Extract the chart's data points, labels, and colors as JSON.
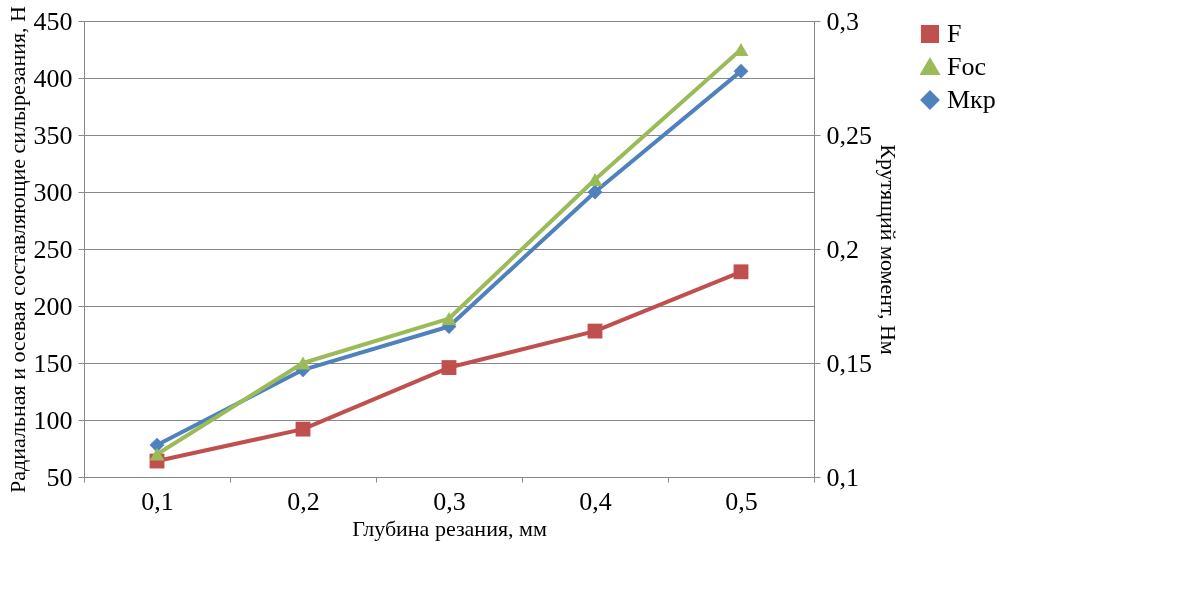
{
  "chart_data": {
    "type": "line",
    "xlabel": "Глубина резания, мм",
    "ylabel": "Радиальная и осевая составляющие силырезания, Н",
    "y2label": "Крутящий момент, Нм",
    "categories": [
      "0,1",
      "0,2",
      "0,3",
      "0,4",
      "0,5"
    ],
    "series": [
      {
        "name": "F",
        "color": "#c0504d",
        "marker": "square",
        "values": [
          64,
          92,
          146,
          178,
          230
        ]
      },
      {
        "name": "Foc",
        "color": "#9bbb59",
        "marker": "triangle",
        "values": [
          70,
          150,
          189,
          311,
          425
        ]
      },
      {
        "name": "Мкр",
        "color": "#4f81bd",
        "marker": "diamond",
        "axis": "y2",
        "values": [
          0.114,
          0.147,
          0.166,
          0.225,
          0.278
        ]
      }
    ],
    "ylim": [
      50,
      450
    ],
    "yticks": [
      50,
      100,
      150,
      200,
      250,
      300,
      350,
      400,
      450
    ],
    "y2lim": [
      0.1,
      0.3
    ],
    "y2ticks": [
      {
        "value": 0.1,
        "label": "0,1"
      },
      {
        "value": 0.15,
        "label": "0,15"
      },
      {
        "value": 0.2,
        "label": "0,2"
      },
      {
        "value": 0.25,
        "label": "0,25"
      },
      {
        "value": 0.3,
        "label": "0,3"
      }
    ],
    "grid": "y",
    "legend": "right",
    "line_style": "solid"
  }
}
